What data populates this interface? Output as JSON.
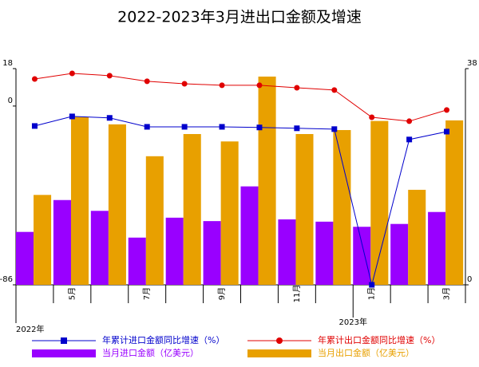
{
  "chart_data": {
    "type": "bar",
    "title": "2022-2023年3月进出口金额及增速",
    "categories": [
      null,
      "5月",
      null,
      "7月",
      null,
      "9月",
      null,
      "11月",
      null,
      "1月",
      null,
      "3月"
    ],
    "annotations": [
      "2022年",
      "2023年"
    ],
    "ylim": [
      -86,
      18
    ],
    "yticks": [
      -86,
      0,
      18
    ],
    "y2lim": [
      0,
      38
    ],
    "y2ticks": [
      0,
      38
    ],
    "series": [
      {
        "name": "年累计进口金额同比增速（%）",
        "type": "line",
        "color": "#0000cc",
        "marker": "square",
        "values": [
          -9.6,
          -5.0,
          -5.7,
          -10.0,
          -10.0,
          -10.0,
          -10.3,
          -10.7,
          -11.1,
          -86,
          -16.1,
          -12.3
        ]
      },
      {
        "name": "年累计出口金额同比增速（%）",
        "type": "line",
        "color": "#e00000",
        "marker": "circle",
        "values": [
          13.0,
          15.7,
          14.6,
          11.9,
          10.7,
          10.0,
          10.0,
          8.8,
          7.7,
          -5.4,
          -7.3,
          -1.9
        ]
      },
      {
        "name": "当月进口金额（亿美元）",
        "type": "bar",
        "axis": "y2",
        "color": "#9900ff",
        "values": [
          9.3,
          14.9,
          13.0,
          8.3,
          11.8,
          11.2,
          17.3,
          11.5,
          11.1,
          10.2,
          10.7,
          12.8
        ]
      },
      {
        "name": "当月出口金额（亿美元）",
        "type": "bar",
        "axis": "y2",
        "color": "#e8a000",
        "values": [
          15.8,
          29.5,
          28.2,
          22.6,
          26.5,
          25.2,
          36.6,
          26.5,
          27.2,
          28.8,
          16.7,
          28.9
        ]
      }
    ]
  }
}
